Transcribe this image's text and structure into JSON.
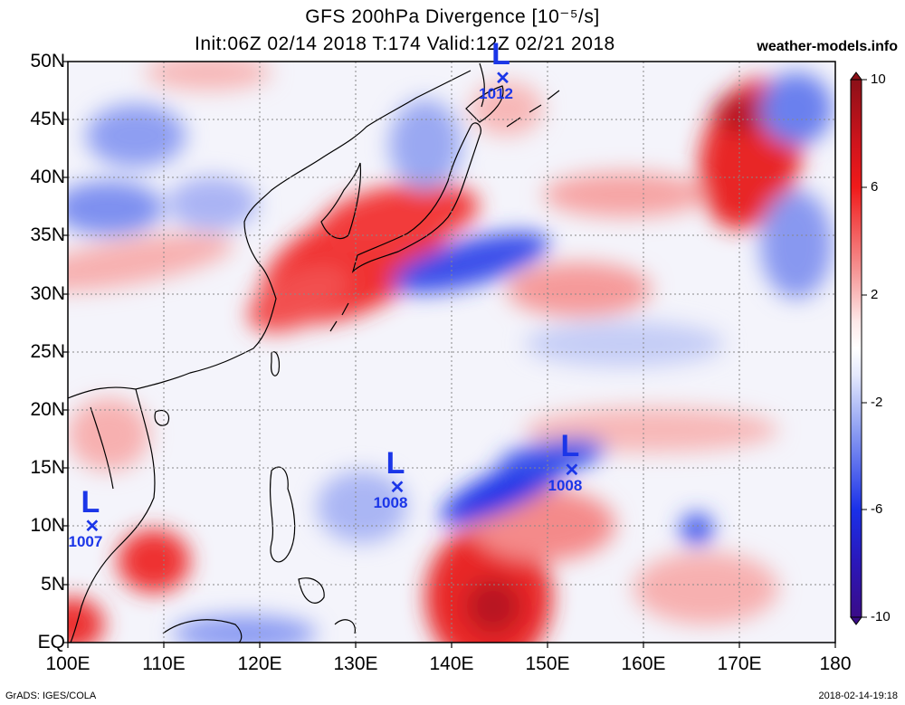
{
  "title": {
    "line1": "GFS 200hPa Divergence [10⁻⁵/s]",
    "line2": "Init:06Z 02/14 2018 T:174 Valid:12Z 02/21 2018"
  },
  "site": "weather-models.info",
  "footer": {
    "left": "GrADS: IGES/COLA",
    "right": "2018-02-14-19:18"
  },
  "axes": {
    "lat_labels": [
      "50N",
      "45N",
      "40N",
      "35N",
      "30N",
      "25N",
      "20N",
      "15N",
      "10N",
      "5N",
      "EQ"
    ],
    "lon_labels": [
      "100E",
      "110E",
      "120E",
      "130E",
      "140E",
      "150E",
      "160E",
      "170E",
      "180"
    ],
    "lat_range": [
      0,
      50
    ],
    "lon_range": [
      100,
      180
    ]
  },
  "colorbar": {
    "labels": [
      "10",
      "6",
      "2",
      "-2",
      "-6",
      "-10"
    ],
    "range": [
      -10,
      10
    ],
    "colors": {
      "max": "#a1101a",
      "strong_pos": "#e8101a",
      "weak_pos": "#f7a8a8",
      "neutral": "#ffffff",
      "weak_neg": "#a8b8f7",
      "strong_neg": "#1a34e8",
      "min": "#2a0d8f"
    }
  },
  "lows": [
    {
      "symbol": "L",
      "pressure": "1012",
      "lat": 48.5,
      "lon": 145.3
    },
    {
      "symbol": "L",
      "pressure": "1008",
      "lat": 13.3,
      "lon": 134.3
    },
    {
      "symbol": "L",
      "pressure": "1008",
      "lat": 14.8,
      "lon": 152.5
    },
    {
      "symbol": "L",
      "pressure": "1007",
      "lat": 10.0,
      "lon": 102.5
    }
  ]
}
